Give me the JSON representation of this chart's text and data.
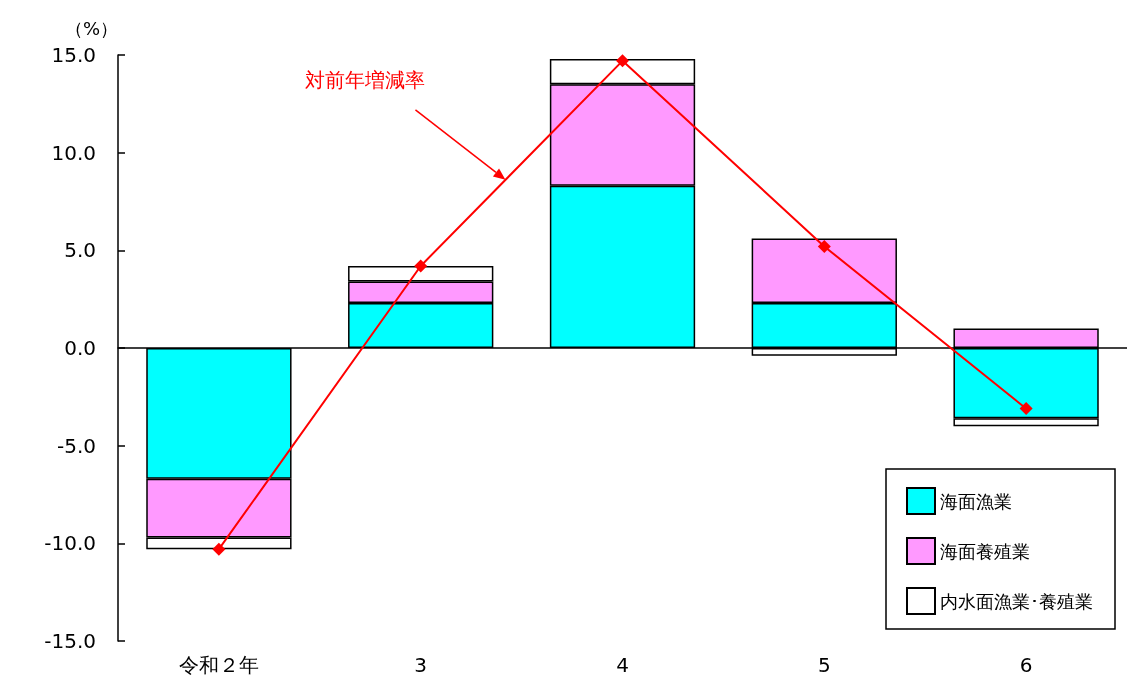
{
  "chart_data": {
    "type": "bar",
    "stacked": true,
    "ylabel": "（%）",
    "categories": [
      "令和２年",
      "3",
      "4",
      "5",
      "6"
    ],
    "series": [
      {
        "name": "海面漁業",
        "color": "#00ffff",
        "values": [
          -6.7,
          2.3,
          8.3,
          2.3,
          -3.6
        ]
      },
      {
        "name": "海面養殖業",
        "color": "#ff99ff",
        "values": [
          -3.0,
          1.1,
          5.2,
          3.3,
          1.0
        ]
      },
      {
        "name": "内水面漁業･養殖業",
        "color": "#ffffff",
        "values": [
          -0.6,
          0.8,
          1.3,
          -0.4,
          -0.4
        ]
      },
      {
        "name": "対前年増減率",
        "type": "line",
        "color": "#ff0000",
        "marker": "diamond",
        "values": [
          -10.3,
          4.2,
          14.7,
          5.2,
          -3.1
        ]
      }
    ],
    "ylim": [
      -15,
      15
    ],
    "yticks": [
      {
        "value": -15,
        "label": "-15.0"
      },
      {
        "value": -10,
        "label": "-10.0"
      },
      {
        "value": -5,
        "label": "-5.0"
      },
      {
        "value": 0,
        "label": "0.0"
      },
      {
        "value": 5,
        "label": "5.0"
      },
      {
        "value": 10,
        "label": "10.0"
      },
      {
        "value": 15,
        "label": "15.0"
      }
    ],
    "legend": "bottom right"
  }
}
